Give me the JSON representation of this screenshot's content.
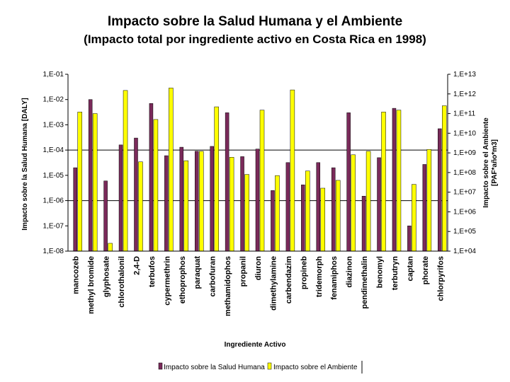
{
  "chart_data": {
    "type": "bar",
    "title": "Impacto sobre la Salud Humana y el Ambiente",
    "subtitle": "(Impacto total por ingrediente activo en Costa Rica en 1998)",
    "xlabel": "Ingrediente Activo",
    "ylabel_left": "Impacto sobre la Salud Humana [DALY]",
    "ylabel_right_line1": "Impacto sobre el Ambiente",
    "ylabel_right_line2": "[PAF*año*m3]",
    "left_ticks": [
      "1,E-08",
      "1,E-07",
      "1,E-06",
      "1,E-05",
      "1,E-04",
      "1,E-03",
      "1,E-02",
      "1,E-01"
    ],
    "right_ticks": [
      "1,E+04",
      "1,E+05",
      "1,E+06",
      "1,E+07",
      "1,E+08",
      "1,E+09",
      "1,E+10",
      "1,E+11",
      "1,E+12",
      "1,E+13"
    ],
    "left_log_range": [
      -8,
      -1
    ],
    "right_log_range": [
      4,
      13
    ],
    "grid": "horizontal lines at 1,E-04 and 1,E-06",
    "legend_position": "bottom",
    "categories": [
      "mancozeb",
      "methyl bromide",
      "glyphosate",
      "chlorothalonil",
      "2,4-D",
      "terbufos",
      "cypermethrin",
      "ethoprophos",
      "paraquat",
      "carbofuran",
      "methamidophos",
      "propanil",
      "diuron",
      "dimethylamine",
      "carbendazim",
      "propineb",
      "tridemorph",
      "fenamiphos",
      "diazinon",
      "pendimethalin",
      "benomyl",
      "terbutryn",
      "captan",
      "phorate",
      "chlorpyrifos"
    ],
    "series": [
      {
        "name": "Impacto sobre la Salud Humana",
        "color": "#7a2a5a",
        "axis": "left",
        "values": [
          2e-05,
          0.01,
          6e-06,
          0.00016,
          0.0003,
          0.007,
          6e-05,
          0.00013,
          9e-05,
          0.00014,
          0.003,
          5.5e-05,
          0.00011,
          2.5e-06,
          3.2e-05,
          4.2e-06,
          3.2e-05,
          2e-05,
          0.003,
          1.5e-06,
          5e-05,
          0.0045,
          1e-07,
          2.7e-05,
          0.0007
        ]
      },
      {
        "name": "Impacto sobre el Ambiente",
        "color": "#ffff00",
        "axis": "right",
        "values": [
          120000000000.0,
          100000000000.0,
          25000.0,
          1500000000000.0,
          350000000.0,
          50000000000.0,
          2000000000000.0,
          400000000.0,
          1200000000.0,
          220000000000.0,
          600000000.0,
          80000000.0,
          150000000000.0,
          70000000.0,
          1600000000000.0,
          120000000.0,
          16000000.0,
          40000000.0,
          800000000.0,
          1200000000.0,
          120000000000.0,
          150000000000.0,
          25000000.0,
          1500000000.0,
          250000000000.0
        ]
      }
    ]
  }
}
